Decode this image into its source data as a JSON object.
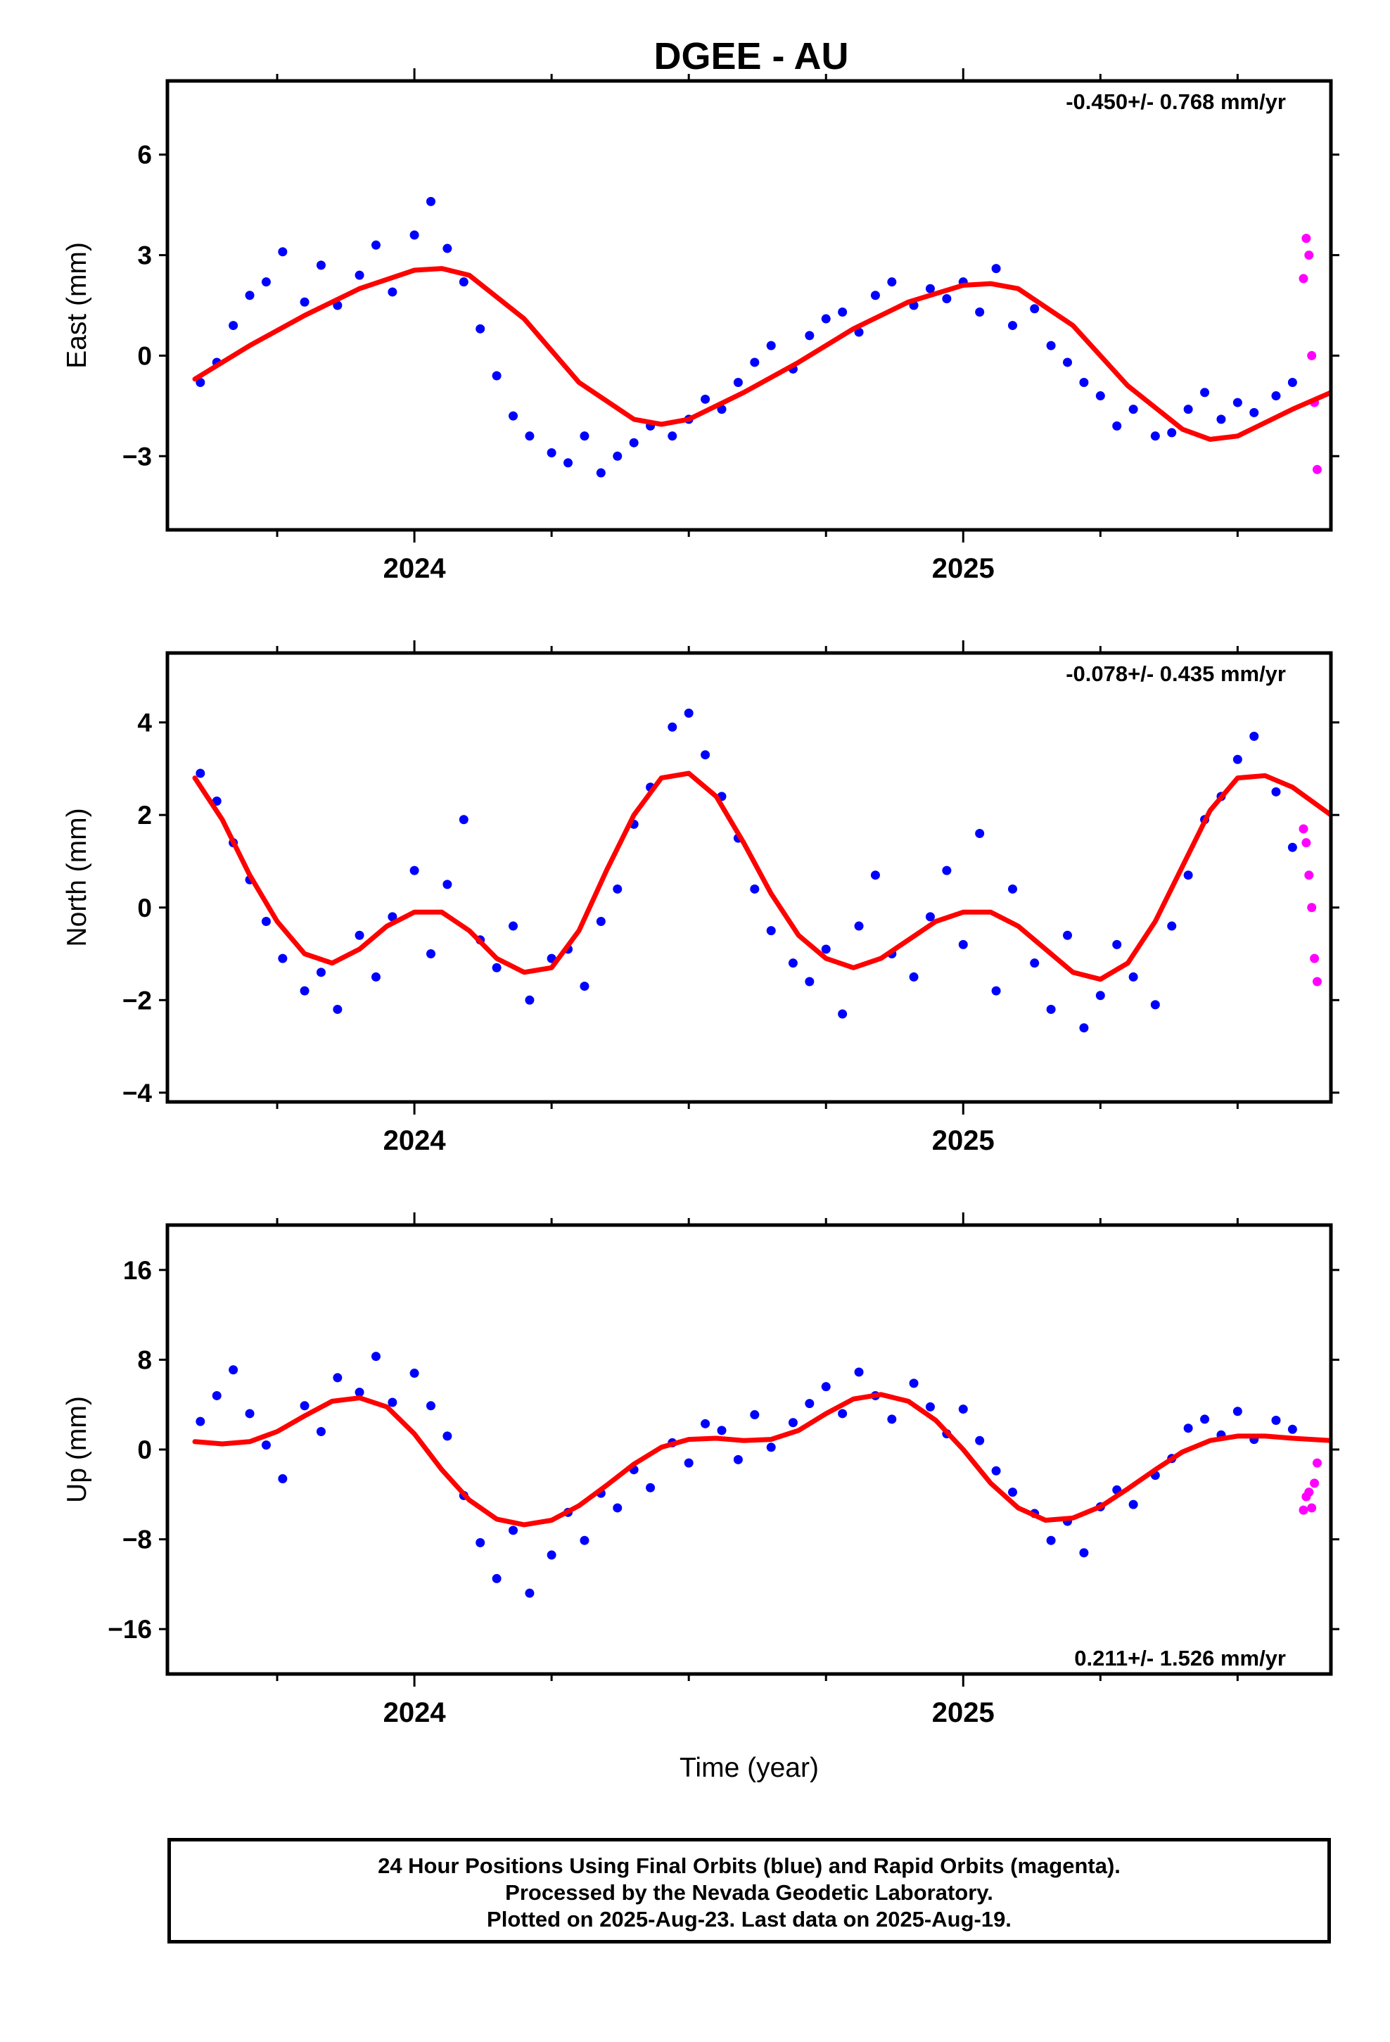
{
  "title": "DGEE - AU",
  "footer": {
    "line1": "24 Hour Positions Using Final Orbits (blue) and Rapid Orbits (magenta).",
    "line2": "Processed by the Nevada Geodetic Laboratory.",
    "line3": "Plotted on 2025-Aug-23. Last data on 2025-Aug-19."
  },
  "colors": {
    "final_orbits": "#0000ff",
    "rapid_orbits": "#ff00ff",
    "fit": "#ff0000",
    "frame": "#000000"
  },
  "chart_data": [
    {
      "type": "scatter",
      "component": "east",
      "ylabel": "East (mm)",
      "xlabel": "",
      "rate_label": "-0.450+/- 0.768 mm/yr",
      "rate_position": "top-right",
      "xlim": [
        2023.55,
        2025.67
      ],
      "ylim": [
        -5.2,
        8.2
      ],
      "yticks": [
        -3,
        0,
        3,
        6
      ],
      "ytick_labels": [
        "−3",
        "0",
        "3",
        "6"
      ],
      "xticks": [
        2024,
        2025
      ],
      "xtick_labels": [
        "2024",
        "2025"
      ],
      "grid": false,
      "series": [
        {
          "name": "24 Hour Positions Using Final Orbits (blue)",
          "color": "#0000ff",
          "x": [
            2023.61,
            2023.64,
            2023.67,
            2023.7,
            2023.73,
            2023.76,
            2023.8,
            2023.83,
            2023.86,
            2023.9,
            2023.93,
            2023.96,
            2024.0,
            2024.03,
            2024.06,
            2024.09,
            2024.12,
            2024.15,
            2024.18,
            2024.21,
            2024.25,
            2024.28,
            2024.31,
            2024.34,
            2024.37,
            2024.4,
            2024.43,
            2024.47,
            2024.5,
            2024.53,
            2024.56,
            2024.59,
            2024.62,
            2024.65,
            2024.69,
            2024.72,
            2024.75,
            2024.78,
            2024.81,
            2024.84,
            2024.87,
            2024.91,
            2024.94,
            2024.97,
            2025.0,
            2025.03,
            2025.06,
            2025.09,
            2025.13,
            2025.16,
            2025.19,
            2025.22,
            2025.25,
            2025.28,
            2025.31,
            2025.35,
            2025.38,
            2025.41,
            2025.44,
            2025.47,
            2025.5,
            2025.53,
            2025.57,
            2025.6
          ],
          "y": [
            -0.8,
            -0.2,
            0.9,
            1.8,
            2.2,
            3.1,
            1.6,
            2.7,
            1.5,
            2.4,
            3.3,
            1.9,
            3.6,
            4.6,
            3.2,
            2.2,
            0.8,
            -0.6,
            -1.8,
            -2.4,
            -2.9,
            -3.2,
            -2.4,
            -3.5,
            -3.0,
            -2.6,
            -2.1,
            -2.4,
            -1.9,
            -1.3,
            -1.6,
            -0.8,
            -0.2,
            0.3,
            -0.4,
            0.6,
            1.1,
            1.3,
            0.7,
            1.8,
            2.2,
            1.5,
            2.0,
            1.7,
            2.2,
            1.3,
            2.6,
            0.9,
            1.4,
            0.3,
            -0.2,
            -0.8,
            -1.2,
            -2.1,
            -1.6,
            -2.4,
            -2.3,
            -1.6,
            -1.1,
            -1.9,
            -1.4,
            -1.7,
            -1.2,
            -0.8
          ]
        },
        {
          "name": "Rapid Orbits (magenta)",
          "color": "#ff00ff",
          "x": [
            2025.62,
            2025.625,
            2025.63,
            2025.635,
            2025.64,
            2025.645
          ],
          "y": [
            2.3,
            3.5,
            3.0,
            0.0,
            -1.4,
            -3.4
          ]
        },
        {
          "name": "fit",
          "color": "#ff0000",
          "x": [
            2023.6,
            2023.7,
            2023.8,
            2023.9,
            2024.0,
            2024.05,
            2024.1,
            2024.2,
            2024.3,
            2024.4,
            2024.45,
            2024.5,
            2024.6,
            2024.7,
            2024.8,
            2024.9,
            2025.0,
            2025.05,
            2025.1,
            2025.2,
            2025.3,
            2025.4,
            2025.45,
            2025.5,
            2025.6,
            2025.67
          ],
          "y": [
            -0.7,
            0.3,
            1.2,
            2.0,
            2.55,
            2.6,
            2.4,
            1.1,
            -0.8,
            -1.9,
            -2.05,
            -1.9,
            -1.1,
            -0.2,
            0.8,
            1.6,
            2.1,
            2.15,
            2.0,
            0.9,
            -0.9,
            -2.2,
            -2.5,
            -2.4,
            -1.6,
            -1.1
          ]
        }
      ]
    },
    {
      "type": "scatter",
      "component": "north",
      "ylabel": "North (mm)",
      "xlabel": "",
      "rate_label": "-0.078+/- 0.435 mm/yr",
      "rate_position": "top-right",
      "xlim": [
        2023.55,
        2025.67
      ],
      "ylim": [
        -4.2,
        5.5
      ],
      "yticks": [
        -4,
        -2,
        0,
        2,
        4
      ],
      "ytick_labels": [
        "−4",
        "−2",
        "0",
        "2",
        "4"
      ],
      "xticks": [
        2024,
        2025
      ],
      "xtick_labels": [
        "2024",
        "2025"
      ],
      "grid": false,
      "series": [
        {
          "name": "24 Hour Positions Using Final Orbits (blue)",
          "color": "#0000ff",
          "x": [
            2023.61,
            2023.64,
            2023.67,
            2023.7,
            2023.73,
            2023.76,
            2023.8,
            2023.83,
            2023.86,
            2023.9,
            2023.93,
            2023.96,
            2024.0,
            2024.03,
            2024.06,
            2024.09,
            2024.12,
            2024.15,
            2024.18,
            2024.21,
            2024.25,
            2024.28,
            2024.31,
            2024.34,
            2024.37,
            2024.4,
            2024.43,
            2024.47,
            2024.5,
            2024.53,
            2024.56,
            2024.59,
            2024.62,
            2024.65,
            2024.69,
            2024.72,
            2024.75,
            2024.78,
            2024.81,
            2024.84,
            2024.87,
            2024.91,
            2024.94,
            2024.97,
            2025.0,
            2025.03,
            2025.06,
            2025.09,
            2025.13,
            2025.16,
            2025.19,
            2025.22,
            2025.25,
            2025.28,
            2025.31,
            2025.35,
            2025.38,
            2025.41,
            2025.44,
            2025.47,
            2025.5,
            2025.53,
            2025.57,
            2025.6
          ],
          "y": [
            2.9,
            2.3,
            1.4,
            0.6,
            -0.3,
            -1.1,
            -1.8,
            -1.4,
            -2.2,
            -0.6,
            -1.5,
            -0.2,
            0.8,
            -1.0,
            0.5,
            1.9,
            -0.7,
            -1.3,
            -0.4,
            -2.0,
            -1.1,
            -0.9,
            -1.7,
            -0.3,
            0.4,
            1.8,
            2.6,
            3.9,
            4.2,
            3.3,
            2.4,
            1.5,
            0.4,
            -0.5,
            -1.2,
            -1.6,
            -0.9,
            -2.3,
            -0.4,
            0.7,
            -1.0,
            -1.5,
            -0.2,
            0.8,
            -0.8,
            1.6,
            -1.8,
            0.4,
            -1.2,
            -2.2,
            -0.6,
            -2.6,
            -1.9,
            -0.8,
            -1.5,
            -2.1,
            -0.4,
            0.7,
            1.9,
            2.4,
            3.2,
            3.7,
            2.5,
            1.3
          ]
        },
        {
          "name": "Rapid Orbits (magenta)",
          "color": "#ff00ff",
          "x": [
            2025.62,
            2025.625,
            2025.63,
            2025.635,
            2025.64,
            2025.645
          ],
          "y": [
            1.7,
            1.4,
            0.7,
            0.0,
            -1.1,
            -1.6
          ]
        },
        {
          "name": "fit",
          "color": "#ff0000",
          "x": [
            2023.6,
            2023.65,
            2023.7,
            2023.75,
            2023.8,
            2023.85,
            2023.9,
            2023.95,
            2024.0,
            2024.05,
            2024.1,
            2024.15,
            2024.2,
            2024.25,
            2024.3,
            2024.35,
            2024.4,
            2024.45,
            2024.5,
            2024.55,
            2024.6,
            2024.65,
            2024.7,
            2024.75,
            2024.8,
            2024.85,
            2024.9,
            2024.95,
            2025.0,
            2025.05,
            2025.1,
            2025.15,
            2025.2,
            2025.25,
            2025.3,
            2025.35,
            2025.4,
            2025.45,
            2025.5,
            2025.55,
            2025.6,
            2025.67
          ],
          "y": [
            2.8,
            1.9,
            0.7,
            -0.3,
            -1.0,
            -1.2,
            -0.9,
            -0.4,
            -0.1,
            -0.1,
            -0.5,
            -1.1,
            -1.4,
            -1.3,
            -0.5,
            0.8,
            2.0,
            2.8,
            2.9,
            2.4,
            1.4,
            0.3,
            -0.6,
            -1.1,
            -1.3,
            -1.1,
            -0.7,
            -0.3,
            -0.1,
            -0.1,
            -0.4,
            -0.9,
            -1.4,
            -1.55,
            -1.2,
            -0.3,
            0.9,
            2.1,
            2.8,
            2.85,
            2.6,
            2.0
          ]
        }
      ]
    },
    {
      "type": "scatter",
      "component": "up",
      "ylabel": "Up (mm)",
      "xlabel": "Time (year)",
      "rate_label": "0.211+/- 1.526 mm/yr",
      "rate_position": "bottom-right",
      "xlim": [
        2023.55,
        2025.67
      ],
      "ylim": [
        -20,
        20
      ],
      "yticks": [
        -16,
        -8,
        0,
        8,
        16
      ],
      "ytick_labels": [
        "−16",
        "−8",
        "0",
        "8",
        "16"
      ],
      "xticks": [
        2024,
        2025
      ],
      "xtick_labels": [
        "2024",
        "2025"
      ],
      "grid": false,
      "series": [
        {
          "name": "24 Hour Positions Using Final Orbits (blue)",
          "color": "#0000ff",
          "x": [
            2023.61,
            2023.64,
            2023.67,
            2023.7,
            2023.73,
            2023.76,
            2023.8,
            2023.83,
            2023.86,
            2023.9,
            2023.93,
            2023.96,
            2024.0,
            2024.03,
            2024.06,
            2024.09,
            2024.12,
            2024.15,
            2024.18,
            2024.21,
            2024.25,
            2024.28,
            2024.31,
            2024.34,
            2024.37,
            2024.4,
            2024.43,
            2024.47,
            2024.5,
            2024.53,
            2024.56,
            2024.59,
            2024.62,
            2024.65,
            2024.69,
            2024.72,
            2024.75,
            2024.78,
            2024.81,
            2024.84,
            2024.87,
            2024.91,
            2024.94,
            2024.97,
            2025.0,
            2025.03,
            2025.06,
            2025.09,
            2025.13,
            2025.16,
            2025.19,
            2025.22,
            2025.25,
            2025.28,
            2025.31,
            2025.35,
            2025.38,
            2025.41,
            2025.44,
            2025.47,
            2025.5,
            2025.53,
            2025.57,
            2025.6
          ],
          "y": [
            2.5,
            4.8,
            7.1,
            3.2,
            0.4,
            -2.6,
            3.9,
            1.6,
            6.4,
            5.1,
            8.3,
            4.2,
            6.8,
            3.9,
            1.2,
            -4.1,
            -8.3,
            -11.5,
            -7.2,
            -12.8,
            -9.4,
            -5.6,
            -8.1,
            -3.9,
            -5.2,
            -1.8,
            -3.4,
            0.6,
            -1.2,
            2.3,
            1.7,
            -0.9,
            3.1,
            0.2,
            2.4,
            4.1,
            5.6,
            3.2,
            6.9,
            4.8,
            2.7,
            5.9,
            3.8,
            1.4,
            3.6,
            0.8,
            -1.9,
            -3.8,
            -5.7,
            -8.1,
            -6.4,
            -9.2,
            -5.1,
            -3.6,
            -4.9,
            -2.3,
            -0.8,
            1.9,
            2.7,
            1.3,
            3.4,
            0.9,
            2.6,
            1.8
          ]
        },
        {
          "name": "Rapid Orbits (magenta)",
          "color": "#ff00ff",
          "x": [
            2025.62,
            2025.625,
            2025.63,
            2025.635,
            2025.64,
            2025.645
          ],
          "y": [
            -5.4,
            -4.2,
            -3.8,
            -5.2,
            -3.0,
            -1.2
          ]
        },
        {
          "name": "fit",
          "color": "#ff0000",
          "x": [
            2023.6,
            2023.65,
            2023.7,
            2023.75,
            2023.8,
            2023.85,
            2023.9,
            2023.95,
            2024.0,
            2024.05,
            2024.1,
            2024.15,
            2024.2,
            2024.25,
            2024.3,
            2024.35,
            2024.4,
            2024.45,
            2024.5,
            2024.55,
            2024.6,
            2024.65,
            2024.7,
            2024.75,
            2024.8,
            2024.85,
            2024.9,
            2024.95,
            2025.0,
            2025.05,
            2025.1,
            2025.15,
            2025.2,
            2025.25,
            2025.3,
            2025.35,
            2025.4,
            2025.45,
            2025.5,
            2025.55,
            2025.6,
            2025.67
          ],
          "y": [
            0.7,
            0.5,
            0.7,
            1.6,
            3.0,
            4.3,
            4.6,
            3.8,
            1.4,
            -1.8,
            -4.5,
            -6.2,
            -6.7,
            -6.3,
            -5.0,
            -3.2,
            -1.3,
            0.2,
            0.9,
            1.0,
            0.8,
            0.9,
            1.7,
            3.2,
            4.5,
            4.9,
            4.3,
            2.6,
            0.0,
            -3.0,
            -5.2,
            -6.3,
            -6.1,
            -5.1,
            -3.5,
            -1.8,
            -0.2,
            0.8,
            1.2,
            1.2,
            1.0,
            0.8
          ]
        }
      ]
    }
  ]
}
